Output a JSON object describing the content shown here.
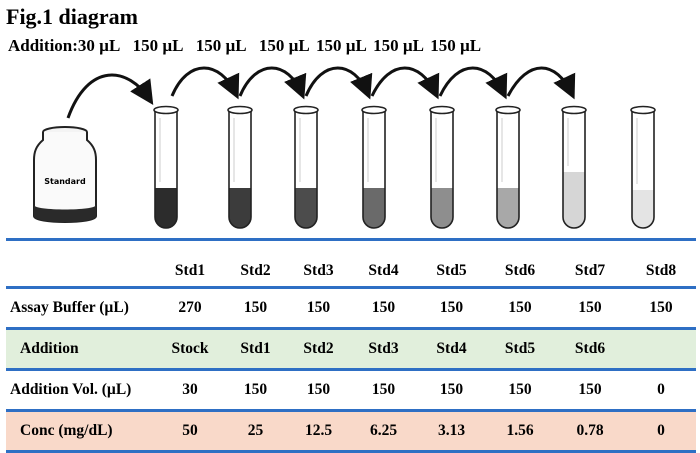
{
  "title": "Fig.1 diagram",
  "additions": {
    "label": "Addition:",
    "values": [
      "30 µL",
      "150 µL",
      "150 µL",
      "150 µL",
      "150 µL",
      "150 µL",
      "150 µL"
    ]
  },
  "bottle": {
    "label": "Standard"
  },
  "table": {
    "columns": [
      "Std1",
      "Std2",
      "Std3",
      "Std4",
      "Std5",
      "Std6",
      "Std7",
      "Std8"
    ],
    "rows": [
      {
        "label": "Assay Buffer (µL)",
        "values": [
          "270",
          "150",
          "150",
          "150",
          "150",
          "150",
          "150",
          "150"
        ]
      },
      {
        "label": "Addition",
        "values": [
          "Stock",
          "Std1",
          "Std2",
          "Std3",
          "Std4",
          "Std5",
          "Std6",
          ""
        ]
      },
      {
        "label": "Addition Vol. (µL)",
        "values": [
          "30",
          "150",
          "150",
          "150",
          "150",
          "150",
          "150",
          "0"
        ]
      },
      {
        "label": "Conc (mg/dL)",
        "values": [
          "50",
          "25",
          "12.5",
          "6.25",
          "3.13",
          "1.56",
          "0.78",
          "0"
        ]
      }
    ]
  },
  "colors": {
    "row_rule": "#2e6fc4",
    "addition_row_bg": "#e1efdc",
    "conc_row_bg": "#f9d9c9",
    "tube_fills": [
      "#2c2c2c",
      "#3c3c3c",
      "#4c4c4c",
      "#6a6a6a",
      "#8e8e8e",
      "#a8a8a8",
      "#d6d6d6",
      "#e4e4e4"
    ]
  }
}
